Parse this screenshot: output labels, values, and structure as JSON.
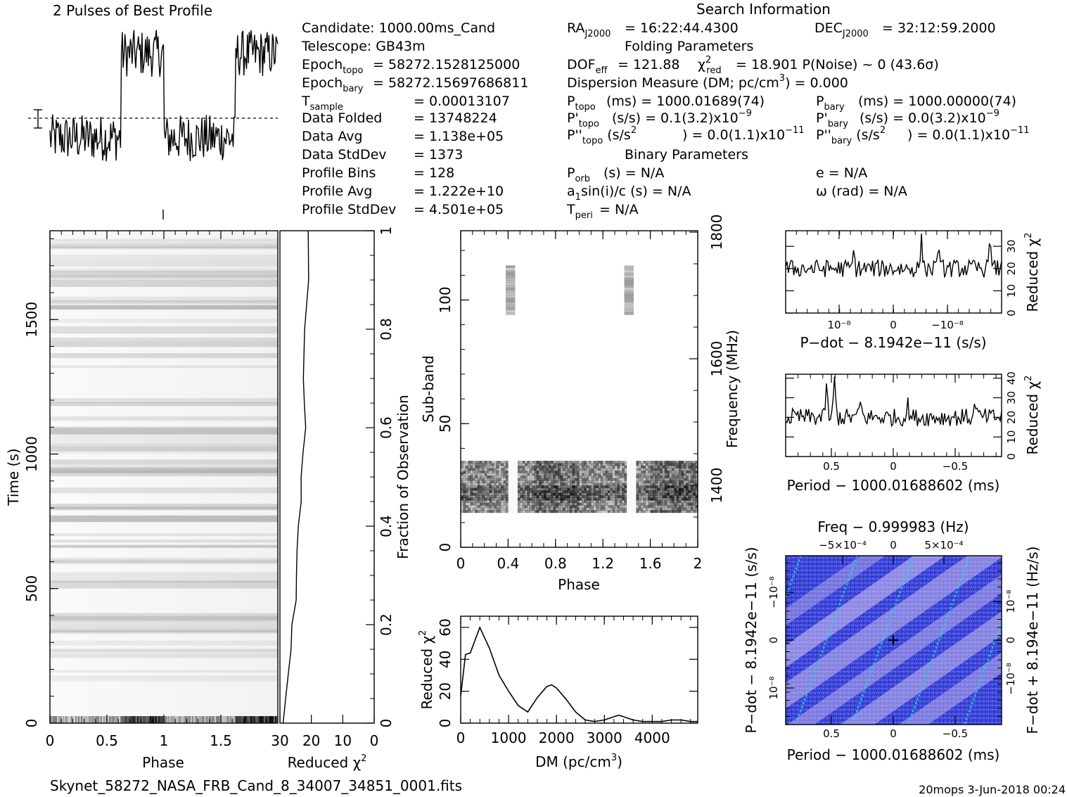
{
  "title": "2 Pulses of Best Profile",
  "footer": {
    "filename": "Skynet_58272_NASA_FRB_Cand_8_34007_34851_0001.fits",
    "stamp": "20mops  3-Jun-2018 00:24"
  },
  "info": {
    "heading": "Search Information",
    "candidate": "Candidate:  1000.00ms_Cand",
    "telescope": "Telescope:  GB43m",
    "epoch_topo": "= 58272.1528125000",
    "epoch_bary": "= 58272.15697686811",
    "tsample": "=   0.00013107",
    "data_folded": "Data Folded",
    "data_folded_val": "=   13748224",
    "data_avg": "Data Avg",
    "data_avg_val": "=   1.138e+05",
    "data_std": "Data StdDev",
    "data_std_val": "=   1373",
    "prof_bins": "Profile Bins",
    "prof_bins_val": "=   128",
    "prof_avg": "Profile Avg",
    "prof_avg_val": "=   1.222e+10",
    "prof_std": "Profile StdDev",
    "prof_std_val": "=   4.501e+05",
    "ra": "= 16:22:44.4300",
    "dec": "= 32:12:59.2000",
    "folding_heading": "Folding Parameters",
    "dof": "= 121.88",
    "chi2": "= 18.901   P(Noise) ~ 0    (43.6σ)",
    "dm": "Dispersion Measure (DM; pc/cm",
    "dm_val": ") = 0.000",
    "ptopo": "(ms) =  1000.01689(74)",
    "pbary": "(ms) =  1000.00000(74)",
    "pdtopo": "(s/s) =  0.1(3.2)x10",
    "pdbary": "(s/s) = 0.0(3.2)x10",
    "pddtopo": ") = 0.0(1.1)x10",
    "pddbary": ") = 0.0(1.1)x10",
    "binary_heading": "Binary Parameters",
    "porb": "(s) = N/A",
    "a1": "a",
    "a1_val": "sin(i)/c (s) = N/A",
    "tperi": "= N/A",
    "ecc": "e = N/A",
    "omega": "ω (rad) = N/A"
  },
  "chart_data": [
    {
      "name": "profile",
      "type": "line",
      "title": "2 Pulses of Best Profile",
      "xlim": [
        0,
        2
      ],
      "description": "Two cycles of pulse profile; high plateau over phase ~0.6-1.0 repeated",
      "low_level": 0.35,
      "high_level": 0.85
    },
    {
      "name": "time-phase",
      "type": "heatmap",
      "xlabel": "Phase",
      "ylabel": "Time (s)",
      "x_ticks": [
        "0",
        "0.5",
        "1",
        "1.5"
      ],
      "y_ticks": [
        "0",
        "500",
        "1000",
        "1500"
      ],
      "xlim": [
        0,
        2
      ],
      "ylim": [
        0,
        1830
      ]
    },
    {
      "name": "time-chi2",
      "type": "line",
      "xlabel": "Reduced χ²",
      "ylabel": "Fraction of Observation",
      "x_ticks": [
        "30",
        "20",
        "10",
        "0"
      ],
      "y_ticks": [
        "0",
        "0.2",
        "0.4",
        "0.6",
        "0.8",
        "1"
      ],
      "xlim": [
        30,
        0
      ],
      "ylim": [
        0,
        1
      ],
      "x": [
        29,
        28,
        27,
        26,
        26,
        25,
        25,
        24,
        24,
        23,
        23,
        23,
        22,
        22,
        22,
        22,
        21,
        21
      ],
      "y": [
        0,
        0.05,
        0.1,
        0.15,
        0.2,
        0.25,
        0.3,
        0.35,
        0.4,
        0.45,
        0.5,
        0.55,
        0.6,
        0.65,
        0.7,
        0.8,
        0.9,
        1.0
      ]
    },
    {
      "name": "subband-phase",
      "type": "heatmap",
      "xlabel": "Phase",
      "ylabel": "Sub-band",
      "y2label": "Frequency (MHz)",
      "x_ticks": [
        "0",
        "0.4",
        "0.8",
        "1.2",
        "1.6",
        "2"
      ],
      "y_ticks": [
        "0",
        "50",
        "100"
      ],
      "y2_ticks": [
        "1400",
        "1600",
        "1800"
      ],
      "xlim": [
        0,
        2
      ],
      "ylim": [
        0,
        128
      ]
    },
    {
      "name": "dm-chi2",
      "type": "line",
      "xlabel": "DM (pc/cm³)",
      "ylabel": "Reduced χ²",
      "x_ticks": [
        "0",
        "1000",
        "2000",
        "3000",
        "4000"
      ],
      "y_ticks": [
        "0",
        "20",
        "40",
        "60"
      ],
      "xlim": [
        0,
        4950
      ],
      "ylim": [
        0,
        67
      ],
      "x": [
        0,
        100,
        200,
        300,
        400,
        600,
        800,
        1000,
        1200,
        1400,
        1600,
        1800,
        1900,
        2000,
        2200,
        2400,
        2600,
        2800,
        3000,
        3200,
        3300,
        3400,
        3600,
        3800,
        4000,
        4200,
        4400,
        4600,
        4800,
        4950
      ],
      "y": [
        17,
        43,
        44,
        52,
        60,
        47,
        30,
        20,
        11,
        7,
        16,
        23,
        24,
        22,
        15,
        7,
        2,
        1,
        2,
        4,
        5,
        4,
        2,
        1,
        1,
        1,
        2,
        2,
        1,
        1
      ]
    },
    {
      "name": "pdot-chi2",
      "type": "line",
      "xlabel": "P-dot − 8.1942e-11 (s/s)",
      "ylabel": "Reduced χ²",
      "x_ticks": [
        "10⁻⁸",
        "0",
        "−10⁻⁸"
      ],
      "y_ticks": [
        "0",
        "10",
        "20",
        "30"
      ],
      "ylim": [
        0,
        37
      ],
      "description": "noisy line around 20"
    },
    {
      "name": "period-chi2",
      "type": "line",
      "xlabel": "Period − 1000.01688602 (ms)",
      "ylabel": "Reduced χ²",
      "x_ticks": [
        "0.5",
        "0",
        "−0.5"
      ],
      "y_ticks": [
        "0",
        "10",
        "20",
        "30",
        "40"
      ],
      "ylim": [
        0,
        42
      ],
      "description": "noisy line around 20"
    },
    {
      "name": "period-pdot",
      "type": "heatmap",
      "title": "Freq − 0.999983 (Hz)",
      "xlabel": "Period − 1000.01688602 (ms)",
      "ylabel": "P-dot − 8.1942e-11 (s/s)",
      "y2label": "F-dot + 8.194e-11 (Hz/s)",
      "x_ticks": [
        "0.5",
        "0",
        "−0.5"
      ],
      "x2_ticks": [
        "−5×10⁻⁴",
        "0",
        "5×10⁻⁴"
      ],
      "y_ticks": [
        "10⁻⁸",
        "0",
        "−10⁻⁸"
      ],
      "y2_ticks": [
        "−10⁻⁸",
        "0",
        "10⁻⁸"
      ]
    }
  ],
  "colors": {
    "ink": "#000000",
    "heat_blue": "#3a46e0",
    "heat_cyan": "#18d8d8",
    "heat_light": "#d8c8f0"
  }
}
